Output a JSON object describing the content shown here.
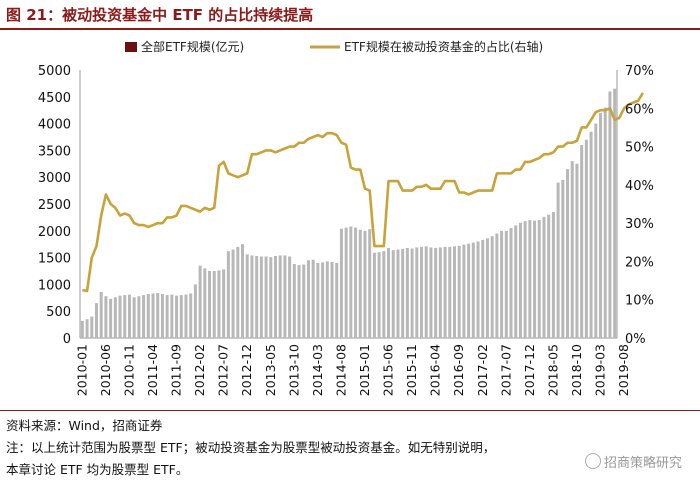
{
  "figure": {
    "title": "图 21：被动投资基金中 ETF 的占比持续提高",
    "source": "资料来源：Wind，招商证券",
    "note_line1": "注：以上统计范围为股票型 ETF；被动投资基金为股票型被动投资基金。如无特别说明，",
    "note_line2": "本章讨论 ETF 均为股票型 ETF。",
    "watermark": "招商策略研究"
  },
  "colors": {
    "bar": "#b8b8b8",
    "bar_legend": "#6b0f0f",
    "line": "#c9a23a",
    "title": "#8b1a1a"
  },
  "chart_data": {
    "type": "bar",
    "legend": {
      "position": "top",
      "bar_label": "全部ETF规模(亿元)",
      "line_label": "ETF规模在被动投资基金的占比(右轴)"
    },
    "y_left": {
      "min": 0,
      "max": 5000,
      "ticks": [
        "0",
        "500",
        "1000",
        "1500",
        "2000",
        "2500",
        "3000",
        "3500",
        "4000",
        "4500",
        "5000"
      ]
    },
    "y_right": {
      "min": 0,
      "max": 70,
      "ticks": [
        "0%",
        "10%",
        "20%",
        "30%",
        "40%",
        "50%",
        "60%",
        "70%"
      ]
    },
    "x_tick_labels": [
      "2010-01",
      "2010-06",
      "2010-11",
      "2011-04",
      "2011-09",
      "2012-02",
      "2012-07",
      "2012-12",
      "2013-05",
      "2013-10",
      "2014-03",
      "2014-08",
      "2015-01",
      "2015-06",
      "2015-11",
      "2016-04",
      "2016-09",
      "2017-02",
      "2017-07",
      "2017-12",
      "2018-05",
      "2018-10",
      "2019-03",
      "2019-08"
    ],
    "x_tick_every": 5,
    "series": [
      {
        "name": "全部ETF规模(亿元)",
        "type": "bar",
        "axis": "left",
        "values": [
          320,
          350,
          400,
          650,
          860,
          780,
          730,
          760,
          790,
          800,
          810,
          760,
          780,
          800,
          820,
          830,
          840,
          820,
          800,
          810,
          790,
          800,
          810,
          830,
          1000,
          1350,
          1300,
          1250,
          1250,
          1260,
          1280,
          1620,
          1650,
          1700,
          1750,
          1560,
          1540,
          1530,
          1520,
          1520,
          1510,
          1530,
          1540,
          1540,
          1520,
          1380,
          1360,
          1370,
          1450,
          1460,
          1400,
          1410,
          1430,
          1420,
          1400,
          2040,
          2060,
          2080,
          2060,
          2020,
          2000,
          2030,
          1590,
          1600,
          1620,
          1680,
          1640,
          1650,
          1660,
          1680,
          1670,
          1690,
          1700,
          1710,
          1690,
          1680,
          1690,
          1700,
          1700,
          1710,
          1720,
          1740,
          1760,
          1780,
          1800,
          1830,
          1860,
          1900,
          1950,
          2000,
          2000,
          2050,
          2100,
          2150,
          2180,
          2200,
          2190,
          2200,
          2260,
          2300,
          2350,
          2900,
          2950,
          3150,
          3300,
          3250,
          3600,
          3700,
          3850,
          4000,
          4200,
          4300,
          4600,
          4650
        ]
      },
      {
        "name": "ETF规模在被动投资基金的占比(右轴)",
        "type": "line",
        "axis": "right",
        "values": [
          12.5,
          12.3,
          21,
          24,
          32,
          37.5,
          35,
          34,
          32,
          32.5,
          32,
          30,
          29.5,
          29.5,
          29,
          29.5,
          30,
          30,
          31.5,
          31.5,
          32,
          34.5,
          34.5,
          34,
          33.5,
          33,
          34,
          33.5,
          34,
          45,
          46,
          43,
          42.5,
          42,
          42.5,
          43,
          48,
          48,
          48.5,
          49,
          49,
          48.5,
          49,
          49.5,
          50,
          50,
          51,
          51,
          52,
          52.5,
          53,
          52.5,
          53.5,
          53.5,
          53,
          51,
          50.5,
          44.5,
          44,
          44,
          39,
          38.5,
          24,
          24,
          24,
          41,
          41,
          41,
          38.5,
          38.5,
          38.5,
          39.5,
          39.5,
          40,
          39,
          39,
          39,
          41,
          41,
          41,
          38,
          38,
          37.5,
          38,
          38.5,
          38.5,
          38.5,
          38.5,
          43,
          43,
          43,
          43,
          44,
          44,
          46,
          46,
          46.5,
          47,
          48,
          48,
          48.5,
          50,
          50,
          51,
          51,
          51.5,
          55,
          55,
          57,
          59,
          59.5,
          59.5,
          60,
          57,
          57.5,
          60,
          61,
          61.5,
          62,
          64
        ]
      }
    ]
  }
}
